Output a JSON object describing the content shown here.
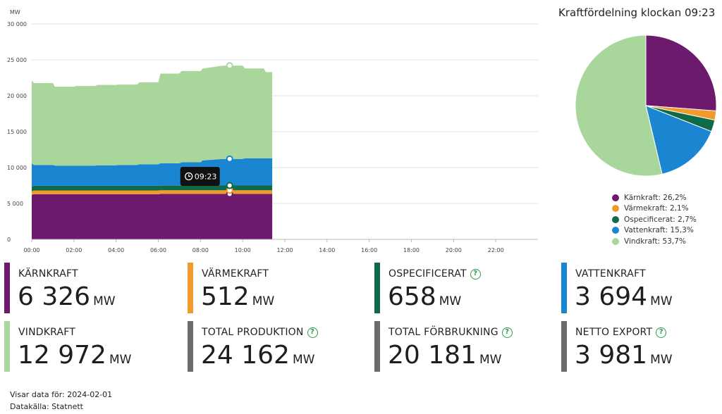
{
  "chart_data": [
    {
      "type": "area",
      "stacked": true,
      "ylabel": "MW",
      "ylim": [
        0,
        30000
      ],
      "yticks": [
        "0",
        "5 000",
        "10 000",
        "15 000",
        "20 000",
        "25 000",
        "30 000"
      ],
      "xticks": [
        "00:00",
        "02:00",
        "04:00",
        "06:00",
        "08:00",
        "10:00",
        "12:00",
        "14:00",
        "16:00",
        "18:00",
        "20:00",
        "22:00"
      ],
      "xlim_hours": [
        0,
        24
      ],
      "grid": true,
      "x": [
        0,
        0.1,
        1,
        1.1,
        2,
        2.1,
        3,
        3.1,
        4,
        4.1,
        5,
        5.1,
        6,
        6.1,
        7,
        7.1,
        8,
        8.1,
        9,
        9.1,
        10,
        10.1,
        11,
        11.1,
        11.4
      ],
      "series": [
        {
          "name": "Kärnkraft",
          "color": "#6d1a6e",
          "values": [
            6200,
            6300,
            6300,
            6300,
            6300,
            6300,
            6300,
            6300,
            6300,
            6300,
            6300,
            6300,
            6300,
            6320,
            6320,
            6320,
            6320,
            6320,
            6326,
            6326,
            6326,
            6326,
            6326,
            6326,
            6326
          ]
        },
        {
          "name": "Värmekraft",
          "color": "#f39a2c",
          "values": [
            500,
            510,
            510,
            510,
            510,
            510,
            510,
            510,
            510,
            510,
            510,
            510,
            510,
            512,
            512,
            512,
            512,
            512,
            512,
            512,
            512,
            512,
            512,
            512,
            512
          ]
        },
        {
          "name": "Ospecificerat",
          "color": "#0f6b47",
          "values": [
            650,
            650,
            650,
            650,
            650,
            650,
            650,
            650,
            650,
            650,
            650,
            650,
            650,
            655,
            655,
            655,
            655,
            655,
            658,
            658,
            658,
            658,
            658,
            658,
            658
          ]
        },
        {
          "name": "Vattenkraft",
          "color": "#1a86d1",
          "values": [
            3200,
            2900,
            2900,
            2800,
            2800,
            2800,
            2800,
            2850,
            2850,
            2900,
            2900,
            3000,
            3000,
            3100,
            3100,
            3250,
            3250,
            3500,
            3694,
            3700,
            3700,
            3800,
            3800,
            3800,
            3800
          ]
        },
        {
          "name": "Vindkraft",
          "color": "#a9d79b",
          "values": [
            11600,
            11400,
            11400,
            11000,
            11000,
            11100,
            11100,
            11200,
            11200,
            11200,
            11200,
            11400,
            11400,
            12500,
            12500,
            12700,
            12700,
            12800,
            12972,
            13000,
            13000,
            12500,
            12500,
            12000,
            12000
          ]
        }
      ],
      "tooltip": {
        "time": "09:23",
        "x_hours": 9.383
      }
    },
    {
      "type": "pie",
      "title": "Kraftfördelning klockan 09:23",
      "slices": [
        {
          "name": "Kärnkraft",
          "value": 26.2,
          "label": "Kärnkraft: 26,2%",
          "color": "#6d1a6e"
        },
        {
          "name": "Värmekraft",
          "value": 2.1,
          "label": "Värmekraft: 2,1%",
          "color": "#f39a2c"
        },
        {
          "name": "Ospecificerat",
          "value": 2.7,
          "label": "Ospecificerat: 2,7%",
          "color": "#0f6b47"
        },
        {
          "name": "Vattenkraft",
          "value": 15.3,
          "label": "Vattenkraft: 15,3%",
          "color": "#1a86d1"
        },
        {
          "name": "Vindkraft",
          "value": 53.7,
          "label": "Vindkraft: 53,7%",
          "color": "#a9d79b"
        }
      ]
    }
  ],
  "stats": [
    {
      "label": "KÄRNKRAFT",
      "value": "6 326",
      "unit": "MW",
      "color": "#6d1a6e",
      "help": false
    },
    {
      "label": "VÄRMEKRAFT",
      "value": "512",
      "unit": "MW",
      "color": "#f39a2c",
      "help": false
    },
    {
      "label": "OSPECIFICERAT",
      "value": "658",
      "unit": "MW",
      "color": "#0f6b47",
      "help": true
    },
    {
      "label": "VATTENKRAFT",
      "value": "3 694",
      "unit": "MW",
      "color": "#1a86d1",
      "help": false
    },
    {
      "label": "VINDKRAFT",
      "value": "12 972",
      "unit": "MW",
      "color": "#a9d79b",
      "help": false
    },
    {
      "label": "TOTAL PRODUKTION",
      "value": "24 162",
      "unit": "MW",
      "color": "#6b6b6b",
      "help": true
    },
    {
      "label": "TOTAL FÖRBRUKNING",
      "value": "20 181",
      "unit": "MW",
      "color": "#6b6b6b",
      "help": true
    },
    {
      "label": "NETTO EXPORT",
      "value": "3 981",
      "unit": "MW",
      "color": "#6b6b6b",
      "help": true
    }
  ],
  "help_icon": "question-circle-icon",
  "clock_icon": "clock-icon",
  "footer": {
    "date_label": "Visar data för:",
    "date": "2024-02-01",
    "source_label": "Datakälla:",
    "source": "Statnett"
  }
}
